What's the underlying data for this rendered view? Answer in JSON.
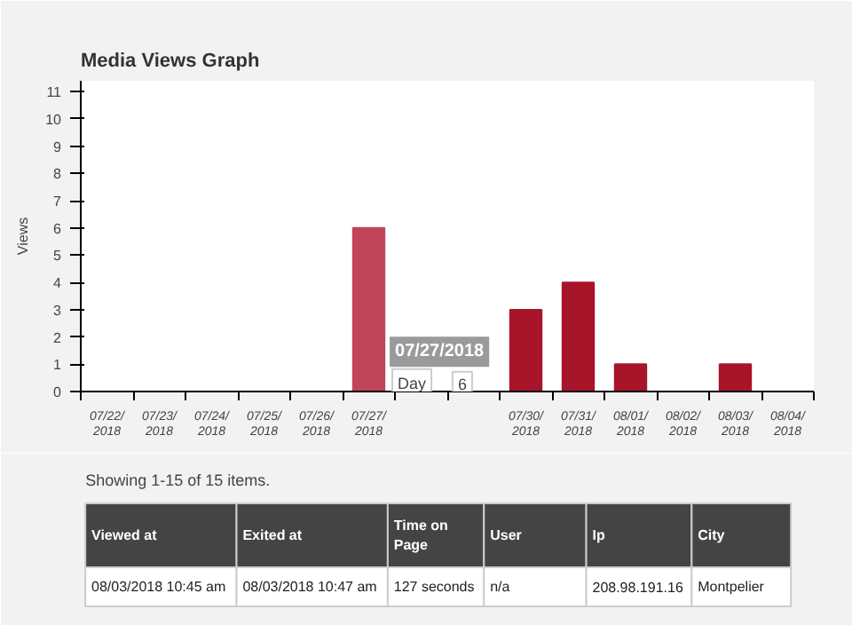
{
  "chart_data": {
    "type": "bar",
    "title": "Media Views Graph",
    "ylabel": "Views",
    "categories": [
      "07/22/\n2018",
      "07/23/\n2018",
      "07/24/\n2018",
      "07/25/\n2018",
      "07/26/\n2018",
      "07/27/\n2018",
      null,
      null,
      "07/30/\n2018",
      "07/31/\n2018",
      "08/01/\n2018",
      "08/02/\n2018",
      "08/03/\n2018",
      "08/04/\n2018"
    ],
    "values": [
      0,
      0,
      0,
      0,
      0,
      6,
      0,
      0,
      3,
      4,
      1,
      0,
      1,
      0
    ],
    "colors": [
      "#a8152b",
      "#a8152b",
      "#a8152b",
      "#a8152b",
      "#a8152b",
      "#c04558",
      "#a8152b",
      "#a8152b",
      "#a8152b",
      "#a8152b",
      "#a8152b",
      "#a8152b",
      "#a8152b",
      "#a8152b"
    ],
    "ylim": [
      0,
      11.4
    ],
    "yticks": [
      0,
      1,
      2,
      3,
      4,
      5,
      6,
      7,
      8,
      9,
      10,
      11
    ],
    "grid": false,
    "annotations": [
      "07/27/2018",
      "Day",
      "6",
      "Showing 1-15 of 15 items.",
      "Viewed at",
      "Exited at",
      "Time on\nPage",
      "User",
      "Ip",
      "City",
      "08/03/2018 10:45 am",
      "08/03/2018 10:47 am",
      "127 seconds",
      "n/a",
      "208.98.191.16",
      "Montpelier"
    ]
  }
}
